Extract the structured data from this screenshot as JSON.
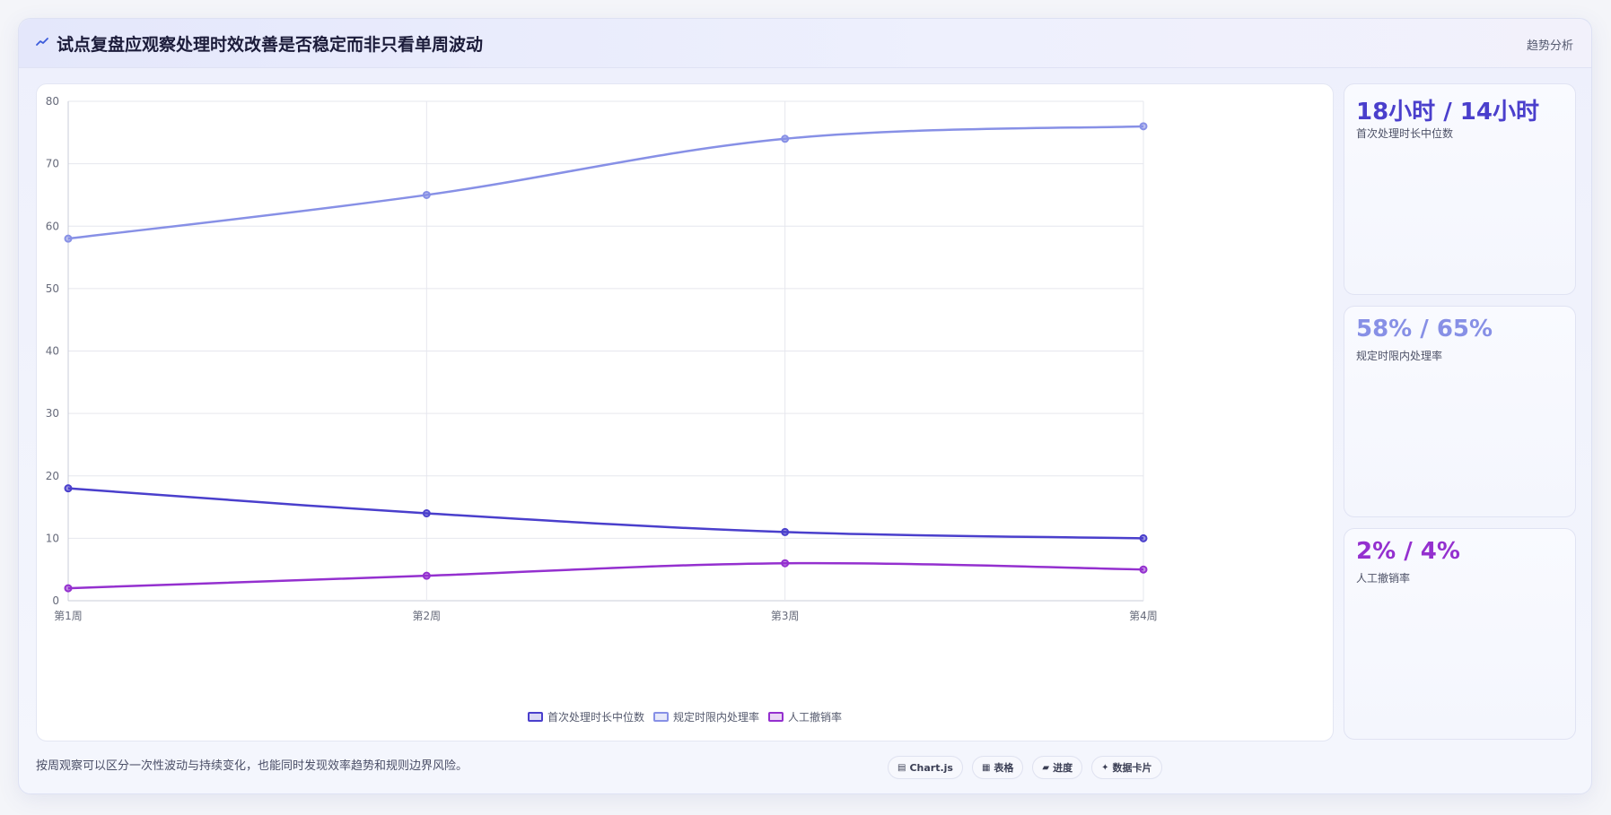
{
  "header": {
    "title": "试点复盘应观察处理时效改善是否稳定而非只看单周波动",
    "tag": "趋势分析",
    "icon": "trend-icon"
  },
  "chart_data": {
    "type": "line",
    "categories": [
      "第1周",
      "第2周",
      "第3周",
      "第4周"
    ],
    "series": [
      {
        "name": "首次处理时长中位数",
        "values": [
          18,
          14,
          11,
          10
        ],
        "color": "#4a3fcc"
      },
      {
        "name": "规定时限内处理率",
        "values": [
          58,
          65,
          74,
          76
        ],
        "color": "#8790e6"
      },
      {
        "name": "人工撤销率",
        "values": [
          2,
          4,
          6,
          5
        ],
        "color": "#9430cf"
      }
    ],
    "ylim": [
      0,
      80
    ],
    "yticks": [
      "0",
      "10",
      "20",
      "30",
      "40",
      "50",
      "60",
      "70",
      "80"
    ],
    "grid": true,
    "legend_position": "bottom"
  },
  "stats": [
    {
      "value": "18小时 / 14小时",
      "label": "首次处理时长中位数",
      "color": "#4a3fcc"
    },
    {
      "value": "58% / 65%",
      "label": "规定时限内处理率",
      "color": "#8790e6"
    },
    {
      "value": "2% / 4%",
      "label": "人工撤销率",
      "color": "#9430cf"
    }
  ],
  "footnote": "按周观察可以区分一次性波动与持续变化，也能同时发现效率趋势和规则边界风险。",
  "pills": [
    {
      "icon": "▤",
      "label": "Chart.js"
    },
    {
      "icon": "▦",
      "label": "表格"
    },
    {
      "icon": "▰",
      "label": "进度"
    },
    {
      "icon": "✦",
      "label": "数据卡片"
    }
  ]
}
